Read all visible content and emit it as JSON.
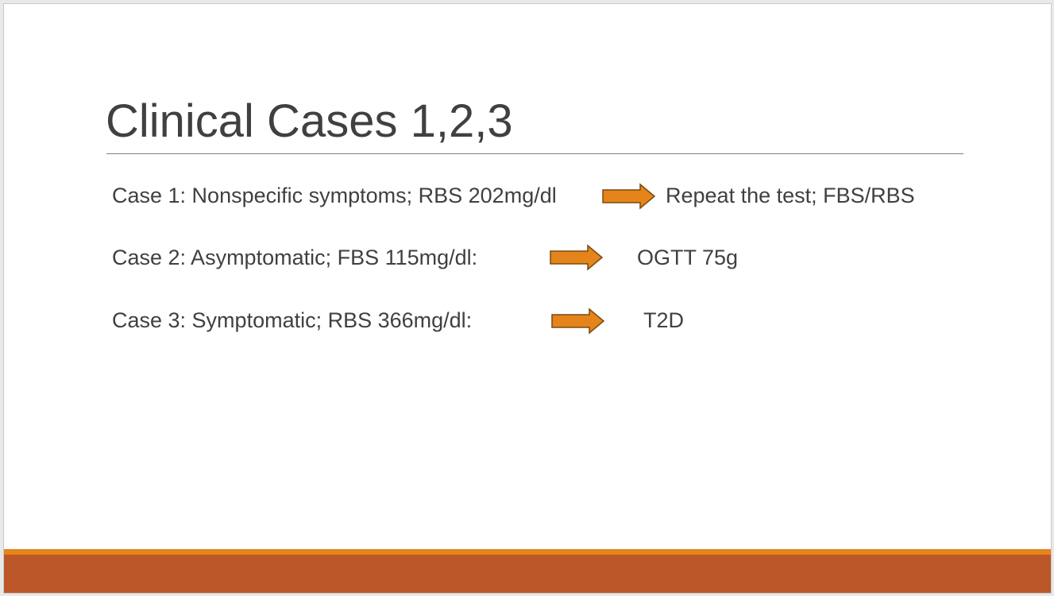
{
  "slide": {
    "title": "Clinical Cases 1,2,3",
    "cases": [
      {
        "text": "Case 1: Nonspecific symptoms; RBS 202mg/dl",
        "result": "Repeat the test; FBS/RBS"
      },
      {
        "text": "Case 2: Asymptomatic; FBS 115mg/dl:",
        "result": "OGTT 75g"
      },
      {
        "text": "Case 3: Symptomatic; RBS 366mg/dl:",
        "result": "T2D"
      }
    ],
    "arrow_icon": "right-arrow-icon"
  },
  "colors": {
    "title_text": "#404040",
    "body_text": "#404040",
    "rule": "#7f7f7f",
    "arrow_fill": "#e5841a",
    "arrow_stroke": "#7a4a10",
    "footer_accent": "#e5841a",
    "footer_band": "#bc572a"
  }
}
